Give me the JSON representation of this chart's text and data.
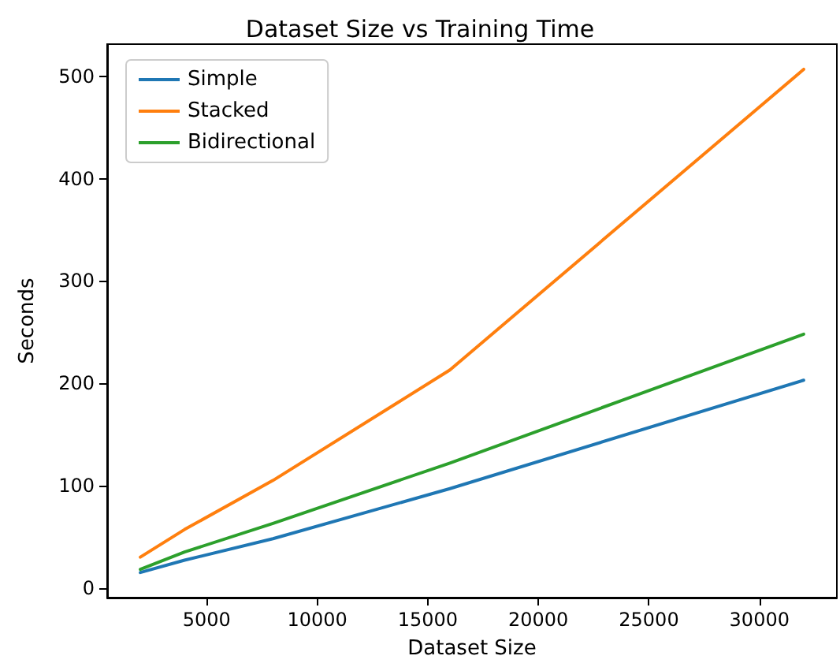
{
  "chart_data": {
    "type": "line",
    "title": "Dataset Size vs Training Time",
    "xlabel": "Dataset Size",
    "ylabel": "Seconds",
    "x": [
      2000,
      4000,
      8000,
      16000,
      32000
    ],
    "series": [
      {
        "name": "Simple",
        "color": "#1f77b4",
        "values": [
          15,
          27,
          48,
          97,
          203
        ]
      },
      {
        "name": "Stacked",
        "color": "#ff7f0e",
        "values": [
          30,
          57,
          105,
          213,
          507
        ]
      },
      {
        "name": "Bidirectional",
        "color": "#2ca02c",
        "values": [
          18,
          35,
          63,
          122,
          248
        ]
      }
    ],
    "xlim": [
      500,
      33500
    ],
    "xticks": [
      5000,
      10000,
      15000,
      20000,
      25000,
      30000
    ],
    "ylim": [
      -9.6,
      531.6
    ],
    "yticks": [
      0,
      100,
      200,
      300,
      400,
      500
    ],
    "grid": false,
    "legend": "top left",
    "marker": "none",
    "line_style": "solid"
  }
}
